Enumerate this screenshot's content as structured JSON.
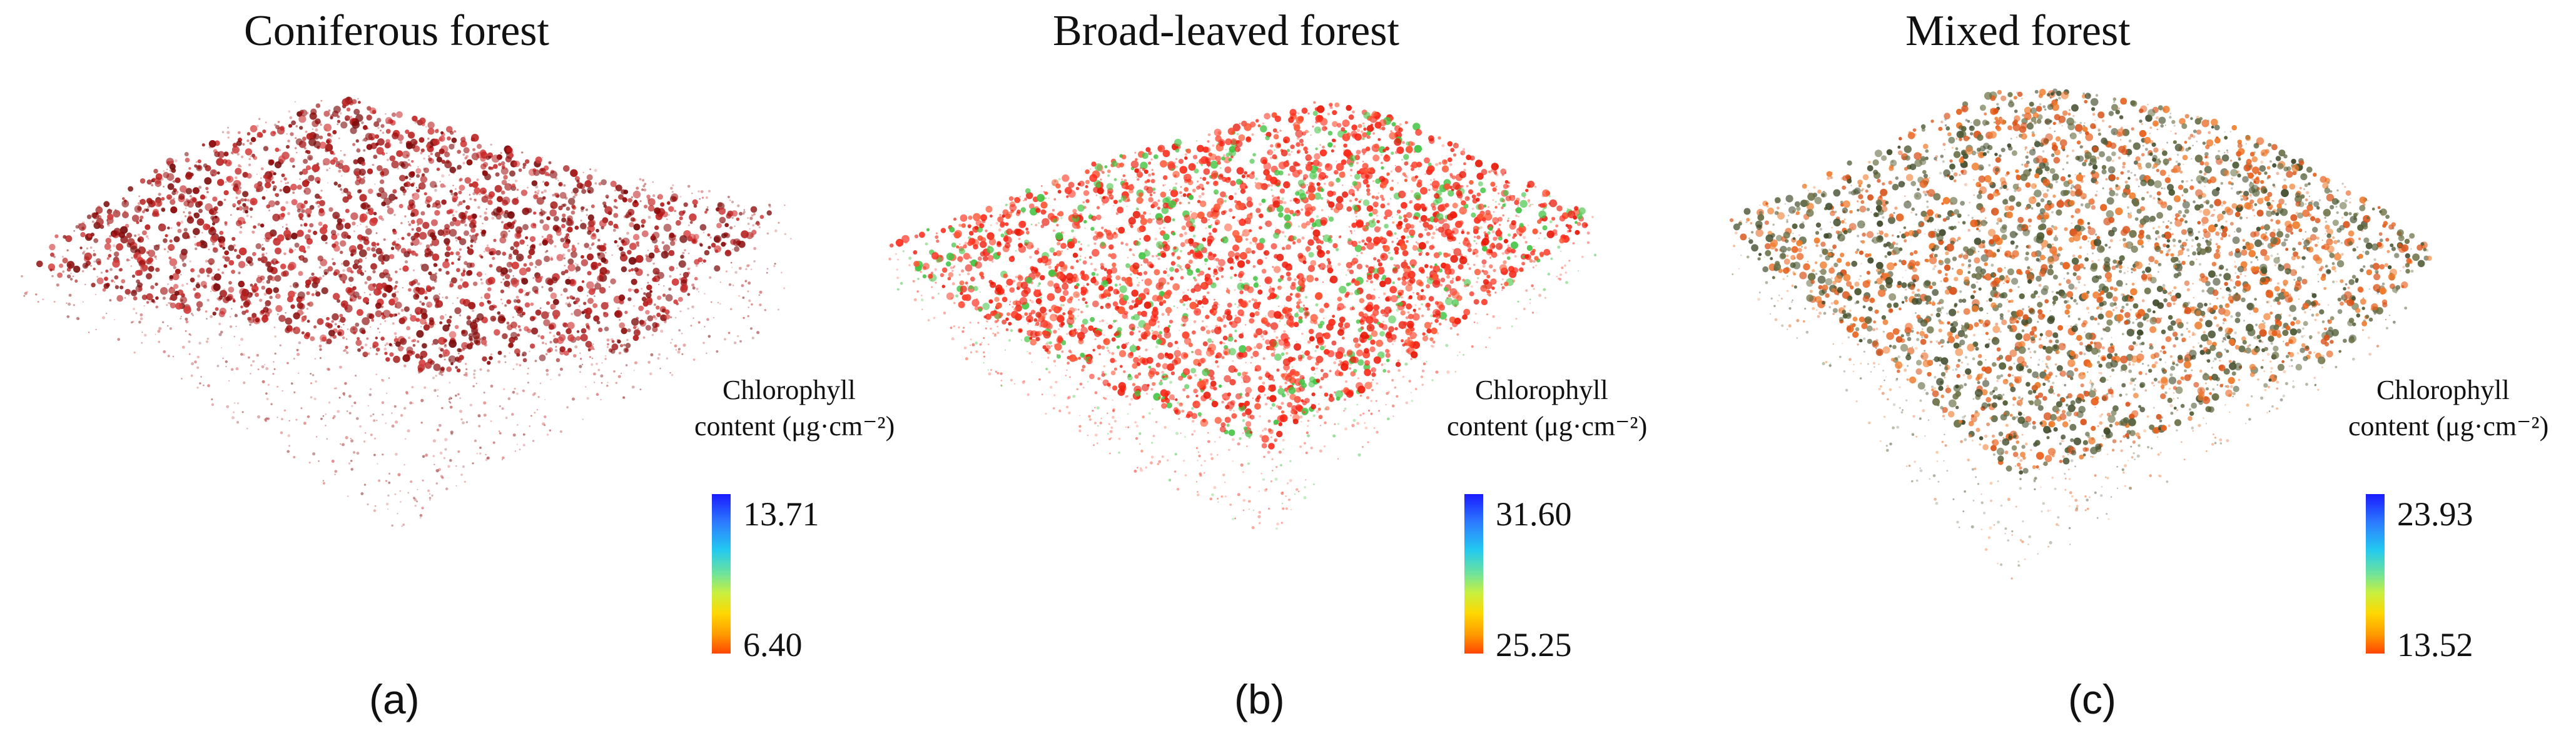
{
  "figure": {
    "panels": [
      {
        "title": "Coniferous forest",
        "label": "(a)",
        "legend": {
          "title_line1": "Chlorophyll",
          "title_line2": "content (μg·cm⁻²)",
          "max": "13.71",
          "min": "6.40"
        },
        "palette": [
          "#8b0a0a",
          "#a01212",
          "#b51c1c",
          "#c62a2a",
          "#7a0c0c",
          "#d43a3a"
        ]
      },
      {
        "title": "Broad-leaved forest",
        "label": "(b)",
        "legend": {
          "title_line1": "Chlorophyll",
          "title_line2": "content (μg·cm⁻²)",
          "max": "31.60",
          "min": "25.25"
        },
        "palette": [
          "#ff2a1a",
          "#f02010",
          "#ff3f2a",
          "#e81808",
          "#ff5533",
          "#43c443"
        ]
      },
      {
        "title": "Mixed forest",
        "label": "(c)",
        "legend": {
          "title_line1": "Chlorophyll",
          "title_line2": "content (μg·cm⁻²)",
          "max": "23.93",
          "min": "13.52"
        },
        "palette": [
          "#e8601c",
          "#d9531a",
          "#f07a2a",
          "#3f4a2a",
          "#4e5a33",
          "#6b7046"
        ]
      }
    ]
  }
}
